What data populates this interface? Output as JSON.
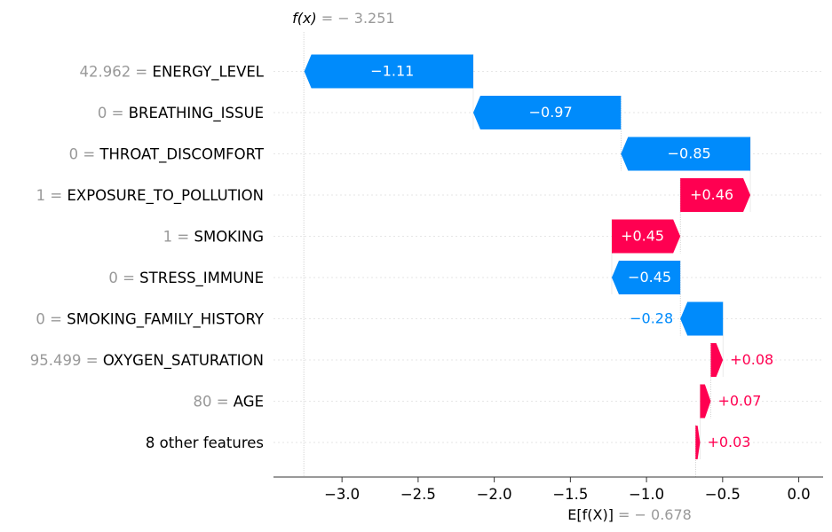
{
  "chart_data": {
    "type": "waterfall",
    "fx_label": "f(x)",
    "fx_eq": " = − 3.251",
    "fx_value": -3.251,
    "ex_label": "E[f(X)]",
    "ex_eq": " = − 0.678",
    "ex_value": -0.678,
    "xlim": [
      -3.45,
      0.16
    ],
    "xticks": [
      -3.0,
      -2.5,
      -2.0,
      -1.5,
      -1.0,
      -0.5,
      0.0
    ],
    "xtick_labels": [
      "−3.0",
      "−2.5",
      "−2.0",
      "−1.5",
      "−1.0",
      "−0.5",
      "0.0"
    ],
    "grid": true,
    "features": [
      {
        "value": "42.962",
        "name": "ENERGY_LEVEL",
        "shap": -1.11,
        "label": "−1.11"
      },
      {
        "value": "0",
        "name": "BREATHING_ISSUE",
        "shap": -0.97,
        "label": "−0.97"
      },
      {
        "value": "0",
        "name": "THROAT_DISCOMFORT",
        "shap": -0.85,
        "label": "−0.85"
      },
      {
        "value": "1",
        "name": "EXPOSURE_TO_POLLUTION",
        "shap": 0.46,
        "label": "+0.46"
      },
      {
        "value": "1",
        "name": "SMOKING",
        "shap": 0.45,
        "label": "+0.45"
      },
      {
        "value": "0",
        "name": "STRESS_IMMUNE",
        "shap": -0.45,
        "label": "−0.45"
      },
      {
        "value": "0",
        "name": "SMOKING_FAMILY_HISTORY",
        "shap": -0.28,
        "label": "−0.28"
      },
      {
        "value": "95.499",
        "name": "OXYGEN_SATURATION",
        "shap": 0.08,
        "label": "+0.08"
      },
      {
        "value": "80",
        "name": "AGE",
        "shap": 0.07,
        "label": "+0.07"
      },
      {
        "value": "",
        "name": "8 other features",
        "shap": 0.03,
        "label": "+0.03"
      }
    ],
    "colors": {
      "positive": "#ff0051",
      "negative": "#008bfb",
      "value_text": "#999999",
      "feature_text": "#000000",
      "axis": "#333333",
      "grid": "#e6e6e6"
    }
  }
}
